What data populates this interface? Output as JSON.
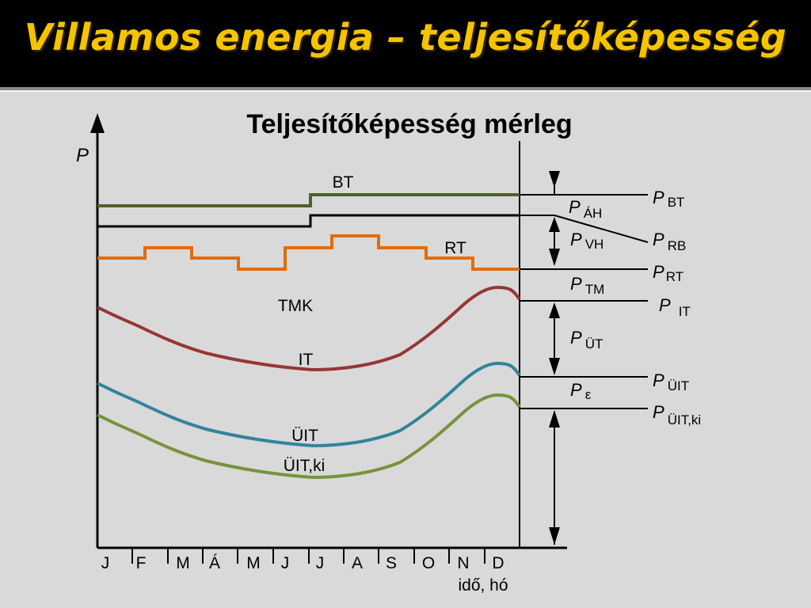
{
  "slide": {
    "title": "Villamos energia – teljesítőképesség",
    "subtitle": "Teljesítőképesség mérleg"
  },
  "axes": {
    "y_label": "P",
    "x_label": "idő, hó",
    "months": [
      "J",
      "F",
      "M",
      "Á",
      "M",
      "J",
      "J",
      "A",
      "S",
      "O",
      "N",
      "D"
    ]
  },
  "curves": {
    "bt": "BT",
    "rt": "RT",
    "tmk": "TMK",
    "it": "IT",
    "uit": "ÜIT",
    "uitki": "ÜIT,ki"
  },
  "right_labels": {
    "p_bt": {
      "main": "P",
      "sub": "BT"
    },
    "p_ah": {
      "main": "P",
      "sub": "ÁH"
    },
    "p_vh": {
      "main": "P",
      "sub": "VH"
    },
    "p_rb": {
      "main": "P",
      "sub": "RB"
    },
    "p_rt": {
      "main": "P",
      "sub": "RT"
    },
    "p_tm": {
      "main": "P",
      "sub": "TM"
    },
    "p_it": {
      "main": "P",
      "sub": "IT"
    },
    "p_ut": {
      "main": "P",
      "sub": "ÜT"
    },
    "p_uit": {
      "main": "P",
      "sub": "ÜIT"
    },
    "p_eps": {
      "main": "P",
      "sub": "ε"
    },
    "p_uitki": {
      "main": "P",
      "sub": "ÜIT,ki"
    }
  },
  "colors": {
    "bt": "#4f6228",
    "rb": "#000000",
    "rt": "#e36c09",
    "it": "#953735",
    "uit": "#31849b",
    "uitki": "#77933c",
    "title": "#f5c400"
  }
}
